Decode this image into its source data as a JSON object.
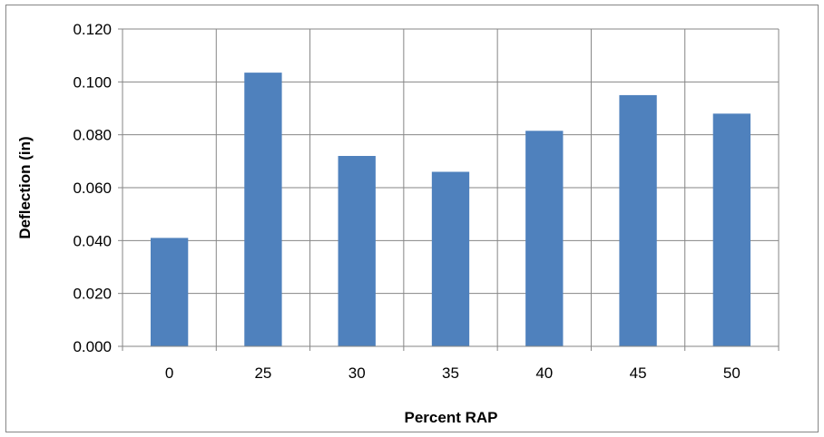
{
  "chart_data": {
    "type": "bar",
    "title": "",
    "xlabel": "Percent RAP",
    "ylabel": "Deflection (in)",
    "categories": [
      "0",
      "25",
      "30",
      "35",
      "40",
      "45",
      "50"
    ],
    "values": [
      0.041,
      0.1035,
      0.072,
      0.066,
      0.0815,
      0.095,
      0.088
    ],
    "ylim": [
      0,
      0.12
    ],
    "yticks": [
      "0.000",
      "0.020",
      "0.040",
      "0.060",
      "0.080",
      "0.100",
      "0.120"
    ],
    "grid": true,
    "legend": "none",
    "bar_color": "#4F81BD",
    "grid_color": "#868686"
  }
}
